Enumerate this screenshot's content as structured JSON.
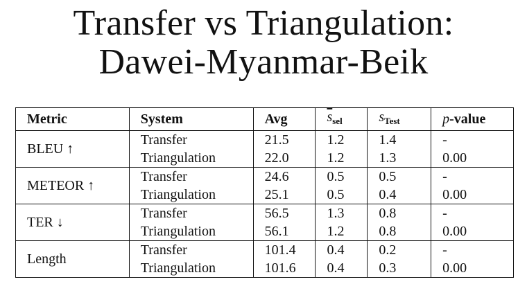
{
  "title": {
    "line1": "Transfer vs Triangulation:",
    "line2": "Dawei-Myanmar-Beik"
  },
  "table": {
    "headers": {
      "metric": "Metric",
      "system": "System",
      "avg": "Avg",
      "ssel_base": "s",
      "ssel_sub": "sel",
      "stest_base": "s",
      "stest_sub": "Test",
      "p_prefix": "p",
      "p_suffix": "-value"
    },
    "groups": [
      {
        "metric": "BLEU ↑",
        "rows": [
          {
            "system": "Transfer",
            "avg": "21.5",
            "ssel": "1.2",
            "stest": "1.4",
            "p": "-"
          },
          {
            "system": "Triangulation",
            "avg": "22.0",
            "ssel": "1.2",
            "stest": "1.3",
            "p": "0.00"
          }
        ]
      },
      {
        "metric": "METEOR ↑",
        "rows": [
          {
            "system": "Transfer",
            "avg": "24.6",
            "ssel": "0.5",
            "stest": "0.5",
            "p": "-"
          },
          {
            "system": "Triangulation",
            "avg": "25.1",
            "ssel": "0.5",
            "stest": "0.4",
            "p": "0.00"
          }
        ]
      },
      {
        "metric": "TER ↓",
        "rows": [
          {
            "system": "Transfer",
            "avg": "56.5",
            "ssel": "1.3",
            "stest": "0.8",
            "p": "-"
          },
          {
            "system": "Triangulation",
            "avg": "56.1",
            "ssel": "1.2",
            "stest": "0.8",
            "p": "0.00"
          }
        ]
      },
      {
        "metric": "Length",
        "rows": [
          {
            "system": "Transfer",
            "avg": "101.4",
            "ssel": "0.4",
            "stest": "0.2",
            "p": "-"
          },
          {
            "system": "Triangulation",
            "avg": "101.6",
            "ssel": "0.4",
            "stest": "0.3",
            "p": "0.00"
          }
        ]
      }
    ]
  }
}
